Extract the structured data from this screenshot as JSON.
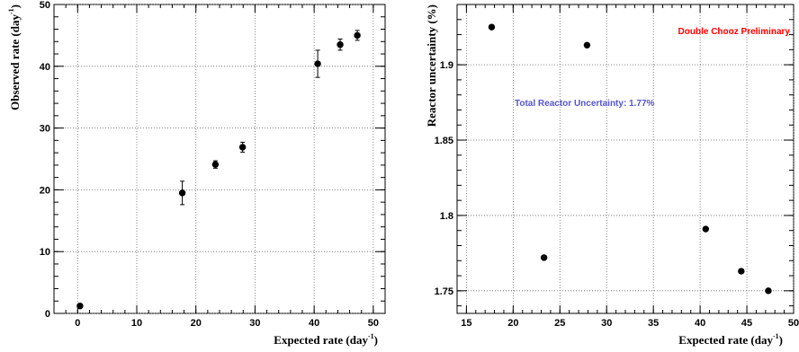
{
  "colors": {
    "marker": "#000000",
    "grid": "#666666",
    "preliminary": "#ff0000",
    "total_uncertainty": "#5555cc"
  },
  "chart_data": [
    {
      "type": "scatter",
      "xlabel_main": "Expected rate (day",
      "xlabel_sup": "-1",
      "xlabel_close": ")",
      "ylabel_main": "Observed rate (day",
      "ylabel_sup": "-1",
      "ylabel_close": ")",
      "xlim": [
        -4,
        52
      ],
      "ylim": [
        0,
        50
      ],
      "x_ticks": [
        "0",
        "10",
        "20",
        "30",
        "40",
        "50"
      ],
      "y_ticks": [
        "0",
        "10",
        "20",
        "30",
        "40",
        "50"
      ],
      "grid": true,
      "error_bars": true,
      "points": [
        {
          "x": 0.4,
          "y": 1.2,
          "err": 0.0
        },
        {
          "x": 17.7,
          "y": 19.5,
          "err": 1.9
        },
        {
          "x": 23.3,
          "y": 24.1,
          "err": 0.6
        },
        {
          "x": 27.9,
          "y": 26.9,
          "err": 0.8
        },
        {
          "x": 40.6,
          "y": 40.4,
          "err": 2.2
        },
        {
          "x": 44.4,
          "y": 43.5,
          "err": 0.9
        },
        {
          "x": 47.3,
          "y": 45.0,
          "err": 0.8
        }
      ]
    },
    {
      "type": "scatter",
      "xlabel_main": "Expected rate (day",
      "xlabel_sup": "-1",
      "xlabel_close": ")",
      "ylabel_main": "Reactor uncertainty (%)",
      "xlim": [
        14,
        50
      ],
      "ylim": [
        1.735,
        1.94
      ],
      "x_ticks": [
        "15",
        "20",
        "25",
        "30",
        "35",
        "40",
        "45",
        "50"
      ],
      "y_ticks": [
        "1.75",
        "1.8",
        "1.85",
        "1.9"
      ],
      "grid": true,
      "points": [
        {
          "x": 17.7,
          "y": 1.925
        },
        {
          "x": 23.3,
          "y": 1.772
        },
        {
          "x": 27.9,
          "y": 1.913
        },
        {
          "x": 40.6,
          "y": 1.791
        },
        {
          "x": 44.4,
          "y": 1.763
        },
        {
          "x": 47.3,
          "y": 1.75
        }
      ],
      "annotations": {
        "preliminary": "Double Chooz Preliminary",
        "total_uncertainty": "Total Reactor Uncertainty: 1.77%"
      }
    }
  ]
}
